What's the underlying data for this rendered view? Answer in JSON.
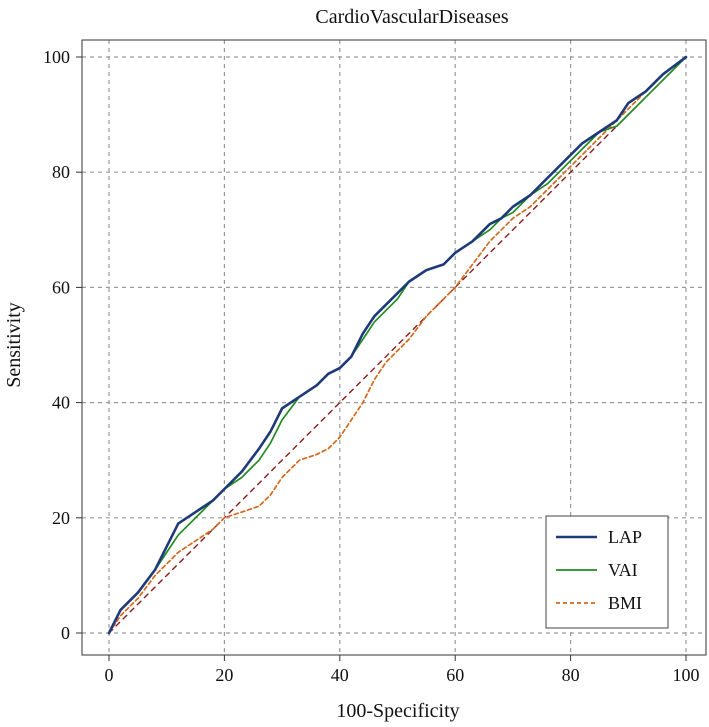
{
  "chart_data": {
    "type": "line",
    "title": "CardioVascularDiseases",
    "xlabel": "100-Specificity",
    "ylabel": "Sensitivity",
    "xlim": [
      0,
      100
    ],
    "ylim": [
      0,
      100
    ],
    "x_ticks": [
      "0",
      "20",
      "40",
      "60",
      "80",
      "100"
    ],
    "y_ticks": [
      "0",
      "20",
      "40",
      "60",
      "80",
      "100"
    ],
    "grid": true,
    "legend_position": "bottom-right",
    "series": [
      {
        "name": "LAP",
        "color": "#1f3a78",
        "style": "solid",
        "x": [
          0,
          2,
          5,
          8,
          10,
          12,
          15,
          18,
          20,
          23,
          26,
          28,
          30,
          33,
          36,
          38,
          40,
          42,
          44,
          46,
          48,
          50,
          52,
          55,
          58,
          60,
          63,
          66,
          68,
          70,
          73,
          76,
          79,
          82,
          85,
          88,
          90,
          93,
          96,
          100
        ],
        "y": [
          0,
          4,
          7,
          11,
          15,
          19,
          21,
          23,
          25,
          28,
          32,
          35,
          39,
          41,
          43,
          45,
          46,
          48,
          52,
          55,
          57,
          59,
          61,
          63,
          64,
          66,
          68,
          71,
          72,
          74,
          76,
          79,
          82,
          85,
          87,
          89,
          92,
          94,
          97,
          100
        ]
      },
      {
        "name": "VAI",
        "color": "#228b22",
        "style": "solid",
        "x": [
          0,
          2,
          5,
          8,
          10,
          12,
          15,
          18,
          20,
          23,
          26,
          28,
          30,
          33,
          36,
          38,
          40,
          42,
          44,
          46,
          48,
          50,
          52,
          55,
          58,
          60,
          63,
          66,
          68,
          70,
          73,
          76,
          79,
          82,
          85,
          88,
          90,
          93,
          96,
          100
        ],
        "y": [
          0,
          4,
          7,
          11,
          14,
          17,
          20,
          23,
          25,
          27,
          30,
          33,
          37,
          41,
          43,
          45,
          46,
          48,
          51,
          54,
          56,
          58,
          61,
          63,
          64,
          66,
          68,
          70,
          72,
          73,
          76,
          78,
          81,
          84,
          87,
          88,
          90,
          93,
          96,
          100
        ]
      },
      {
        "name": "BMI",
        "color": "#d2691e",
        "style": "dashed",
        "x": [
          0,
          2,
          5,
          8,
          10,
          12,
          15,
          18,
          20,
          23,
          26,
          28,
          30,
          33,
          36,
          38,
          40,
          42,
          44,
          46,
          48,
          50,
          52,
          55,
          58,
          60,
          63,
          66,
          68,
          70,
          73,
          76,
          79,
          82,
          85,
          88,
          90,
          93,
          96,
          100
        ],
        "y": [
          0,
          3,
          6,
          10,
          12,
          14,
          16,
          18,
          20,
          21,
          22,
          24,
          27,
          30,
          31,
          32,
          34,
          37,
          40,
          44,
          47,
          49,
          51,
          55,
          58,
          60,
          64,
          68,
          70,
          72,
          74,
          77,
          80,
          83,
          86,
          89,
          91,
          94,
          97,
          100
        ]
      },
      {
        "name": "",
        "color": "#8b1a1a",
        "style": "dashed",
        "x": [
          0,
          100
        ],
        "y": [
          0,
          100
        ]
      }
    ]
  }
}
